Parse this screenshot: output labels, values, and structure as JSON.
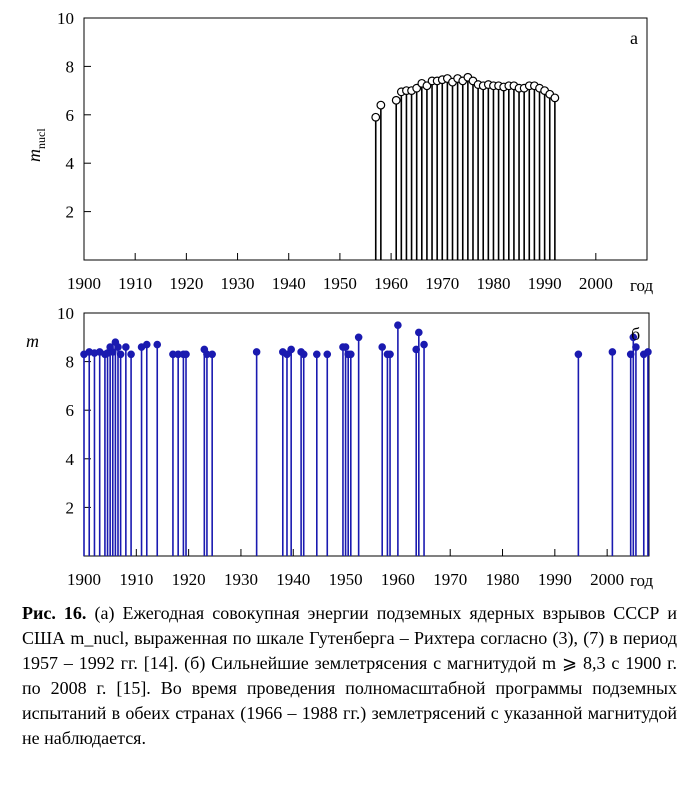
{
  "chart_data": [
    {
      "type": "stem",
      "panel_label": "а",
      "ylabel": "m",
      "ylabel_subscript": "nucl",
      "xlabel": "год",
      "xlim": [
        1900,
        2010
      ],
      "ylim": [
        0,
        10
      ],
      "xticks": [
        "1900",
        "1910",
        "1920",
        "1930",
        "1940",
        "1950",
        "1960",
        "1970",
        "1980",
        "1990",
        "2000"
      ],
      "yticks": [
        "2",
        "4",
        "6",
        "8",
        "10"
      ],
      "marker": "open-circle",
      "color": "#000000",
      "x": [
        1957,
        1958,
        1961,
        1962,
        1963,
        1964,
        1965,
        1966,
        1967,
        1968,
        1969,
        1970,
        1971,
        1972,
        1973,
        1974,
        1975,
        1976,
        1977,
        1978,
        1979,
        1980,
        1981,
        1982,
        1983,
        1984,
        1985,
        1986,
        1987,
        1988,
        1989,
        1990,
        1991,
        1992
      ],
      "y": [
        5.9,
        6.4,
        6.6,
        6.95,
        7.0,
        7.0,
        7.1,
        7.3,
        7.2,
        7.4,
        7.4,
        7.45,
        7.5,
        7.35,
        7.5,
        7.4,
        7.55,
        7.4,
        7.25,
        7.2,
        7.25,
        7.2,
        7.2,
        7.15,
        7.2,
        7.2,
        7.1,
        7.1,
        7.2,
        7.2,
        7.1,
        7.0,
        6.85,
        6.7
      ]
    },
    {
      "type": "stem",
      "panel_label": "б",
      "ylabel": "m",
      "xlabel": "год",
      "xlim": [
        1900,
        2008
      ],
      "ylim": [
        0,
        10
      ],
      "xticks": [
        "1900",
        "1910",
        "1920",
        "1930",
        "1940",
        "1950",
        "1960",
        "1970",
        "1980",
        "1990",
        "2000"
      ],
      "yticks": [
        "2",
        "4",
        "6",
        "8",
        "10"
      ],
      "marker": "filled-circle",
      "color": "#1a1ab0",
      "x": [
        1900,
        1901,
        1902,
        1903,
        1904,
        1904.5,
        1905,
        1905.5,
        1906,
        1906.5,
        1907,
        1908,
        1909,
        1911,
        1912,
        1914,
        1917,
        1918,
        1919,
        1919.5,
        1923,
        1923.5,
        1924.5,
        1933,
        1938,
        1938.8,
        1939.6,
        1941.5,
        1942,
        1944.5,
        1946.5,
        1949.5,
        1950,
        1950.5,
        1951,
        1952.5,
        1957,
        1958,
        1958.5,
        1960,
        1963.5,
        1964,
        1965,
        1994.5,
        2001,
        2004.5,
        2005,
        2005.5,
        2007,
        2007.8
      ],
      "y": [
        8.3,
        8.4,
        8.35,
        8.4,
        8.3,
        8.35,
        8.6,
        8.4,
        8.8,
        8.6,
        8.3,
        8.6,
        8.3,
        8.6,
        8.7,
        8.7,
        8.3,
        8.3,
        8.3,
        8.3,
        8.5,
        8.3,
        8.3,
        8.4,
        8.4,
        8.3,
        8.5,
        8.4,
        8.3,
        8.3,
        8.3,
        8.6,
        8.6,
        8.3,
        8.3,
        9.0,
        8.6,
        8.3,
        8.3,
        9.5,
        8.5,
        9.2,
        8.7,
        8.3,
        8.4,
        8.3,
        9.0,
        8.6,
        8.3,
        8.4
      ]
    }
  ],
  "caption": {
    "label": "Рис. 16.",
    "text": " (а) Ежегодная совокупная энергии подземных ядерных взрывов СССР и США m_nucl, выраженная по шкале Гутенберга – Рихтера согласно (3), (7) в период 1957 – 1992 гг. [14]. (б) Сильнейшие землетрясения с магнитудой m ⩾ 8,3 с 1900 г. по 2008 г. [15]. Во время проведения полномасштабной программы подземных испытаний в обеих странах (1966 – 1988 гг.) землетрясений с указанной магнитудой не наблюдается."
  }
}
